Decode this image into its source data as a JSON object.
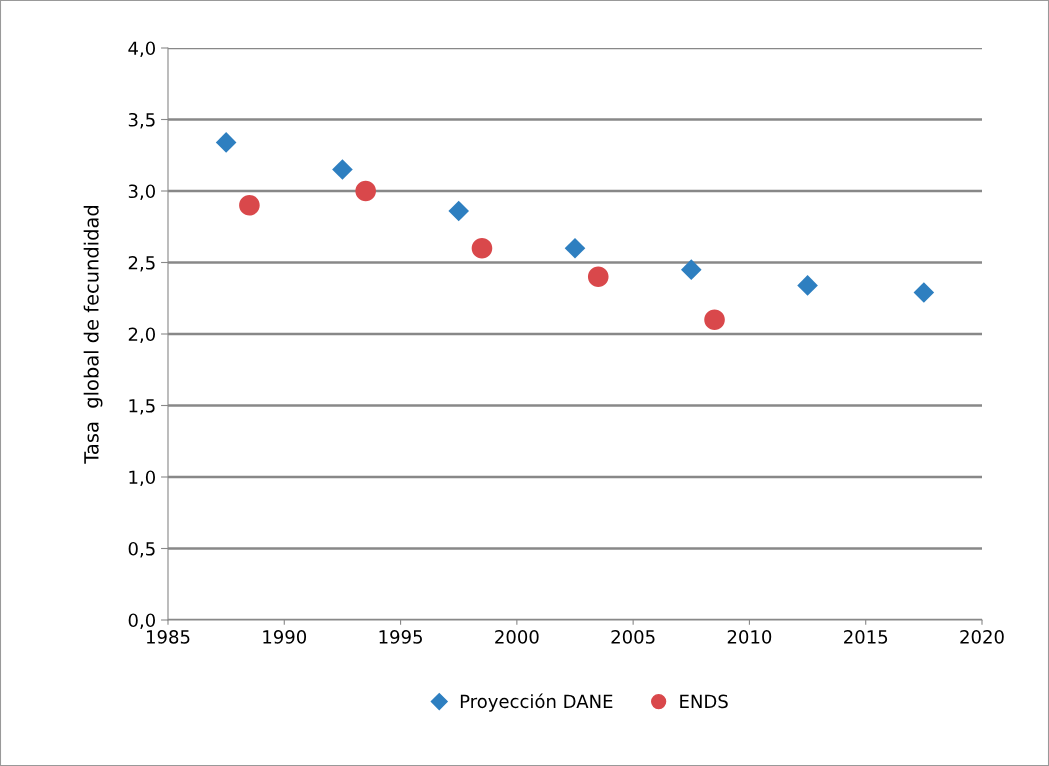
{
  "chart_data": {
    "type": "scatter",
    "ylabel": "Tasa  global de fecundidad",
    "series": [
      {
        "name": "Proyección DANE",
        "color": "#2e7fc0",
        "marker": "diamond",
        "x": [
          1987.5,
          1992.5,
          1997.5,
          2002.5,
          2007.5,
          2012.5,
          2017.5
        ],
        "values": [
          3.34,
          3.15,
          2.86,
          2.6,
          2.45,
          2.34,
          2.29
        ]
      },
      {
        "name": "ENDS",
        "color": "#d9484b",
        "marker": "circle",
        "x": [
          1988.5,
          1993.5,
          1998.5,
          2003.5,
          2008.5
        ],
        "values": [
          2.9,
          3.0,
          2.6,
          2.4,
          2.1
        ]
      }
    ],
    "xlim": [
      1985,
      2020
    ],
    "xticks": [
      1985,
      1990,
      1995,
      2000,
      2005,
      2010,
      2015,
      2020
    ],
    "ylim": [
      0,
      4
    ],
    "yticks": [
      {
        "value": 0,
        "label": "0,0"
      },
      {
        "value": 0.5,
        "label": "0,5"
      },
      {
        "value": 1,
        "label": "1,0"
      },
      {
        "value": 1.5,
        "label": "1,5"
      },
      {
        "value": 2,
        "label": "2,0"
      },
      {
        "value": 2.5,
        "label": "2,5"
      },
      {
        "value": 3,
        "label": "3,0"
      },
      {
        "value": 3.5,
        "label": "3,5"
      },
      {
        "value": 4,
        "label": "4,0"
      }
    ],
    "grid": "y",
    "legend": "bottom"
  }
}
